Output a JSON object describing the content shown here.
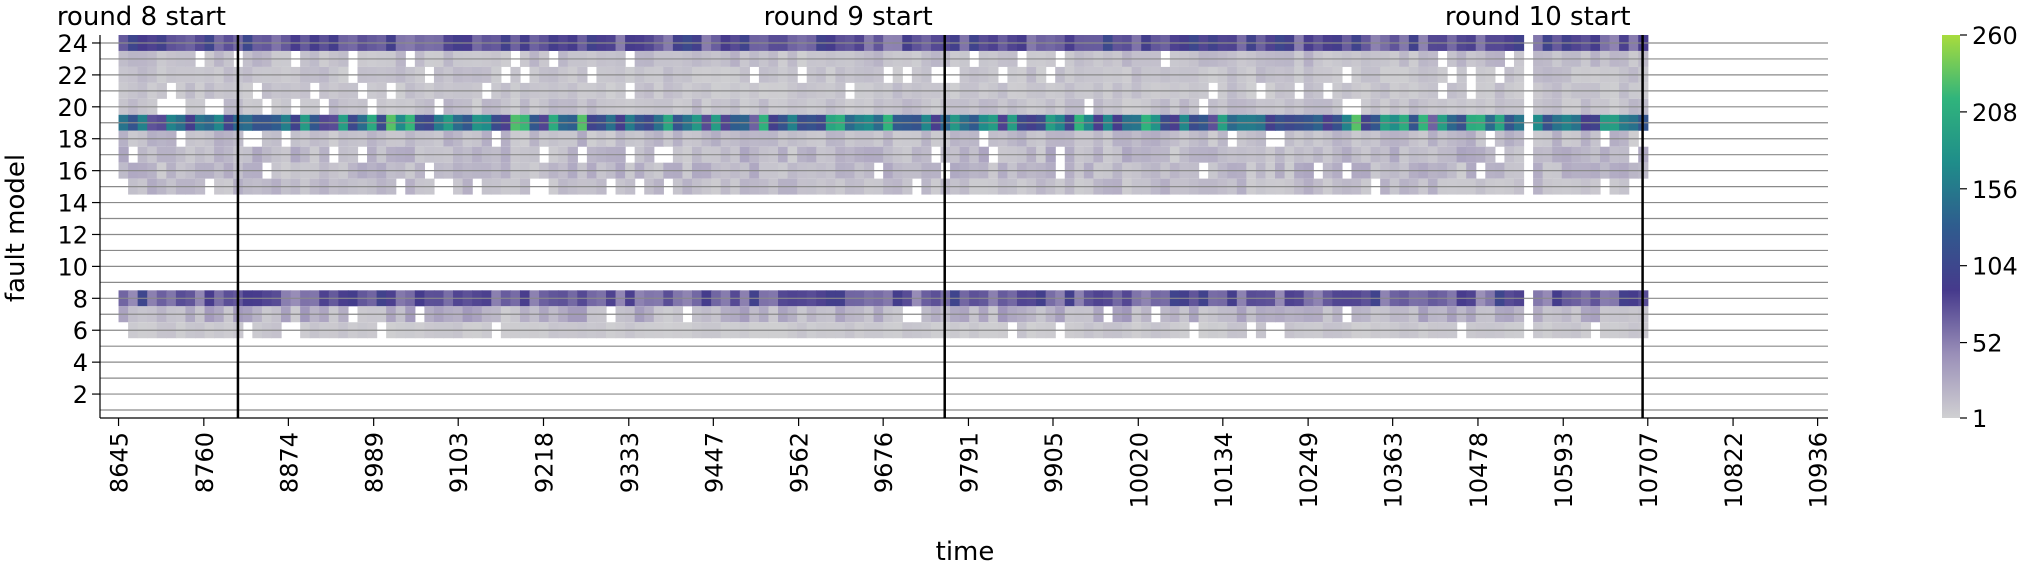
{
  "chart_data": {
    "type": "heatmap",
    "xlabel": "time",
    "ylabel": "fault model",
    "x_tick_labels": [
      "8645",
      "8760",
      "8874",
      "8989",
      "9103",
      "9218",
      "9333",
      "9447",
      "9562",
      "9676",
      "9791",
      "9905",
      "10020",
      "10134",
      "10249",
      "10363",
      "10478",
      "10593",
      "10707",
      "10822",
      "10936"
    ],
    "x_range": [
      8620,
      10950
    ],
    "y_tick_labels": [
      "2",
      "4",
      "6",
      "8",
      "10",
      "12",
      "14",
      "16",
      "18",
      "20",
      "22",
      "24"
    ],
    "y_range": [
      0.5,
      24.5
    ],
    "rounds": [
      {
        "label": "round 8 start",
        "time": 8806
      },
      {
        "label": "round 9 start",
        "time": 9759
      },
      {
        "label": "round 10 start",
        "time": 10700
      }
    ],
    "data_extent": {
      "start": 8645,
      "end": 10707,
      "bins": 160
    },
    "gaps": [
      [
        10545,
        10553
      ]
    ],
    "colorbar": {
      "min": 1,
      "max": 260,
      "ticks": [
        "1",
        "52",
        "104",
        "156",
        "208",
        "260"
      ],
      "colors": [
        "#d0d0d2",
        "#9a8fb8",
        "#463a8c",
        "#2f5c8e",
        "#1f8d8a",
        "#30b47c",
        "#a8dc3c"
      ]
    },
    "row_profiles": [
      {
        "fault_model": 24,
        "typical_count": 70,
        "range": [
          45,
          110
        ]
      },
      {
        "fault_model": 23,
        "typical_count": 12,
        "range": [
          1,
          30
        ]
      },
      {
        "fault_model": 22,
        "typical_count": 8,
        "range": [
          1,
          25
        ]
      },
      {
        "fault_model": 21,
        "typical_count": 6,
        "range": [
          1,
          22
        ]
      },
      {
        "fault_model": 20,
        "typical_count": 10,
        "range": [
          1,
          28
        ]
      },
      {
        "fault_model": 19,
        "typical_count": 160,
        "range": [
          60,
          260
        ]
      },
      {
        "fault_model": 18,
        "typical_count": 15,
        "range": [
          1,
          35
        ]
      },
      {
        "fault_model": 17,
        "typical_count": 18,
        "range": [
          1,
          40
        ]
      },
      {
        "fault_model": 16,
        "typical_count": 15,
        "range": [
          1,
          40
        ]
      },
      {
        "fault_model": 15,
        "typical_count": 12,
        "range": [
          1,
          35
        ]
      },
      {
        "fault_model": 8,
        "typical_count": 70,
        "range": [
          40,
          105
        ]
      },
      {
        "fault_model": 7,
        "typical_count": 18,
        "range": [
          1,
          55
        ]
      },
      {
        "fault_model": 6,
        "typical_count": 4,
        "range": [
          1,
          15
        ]
      }
    ]
  }
}
